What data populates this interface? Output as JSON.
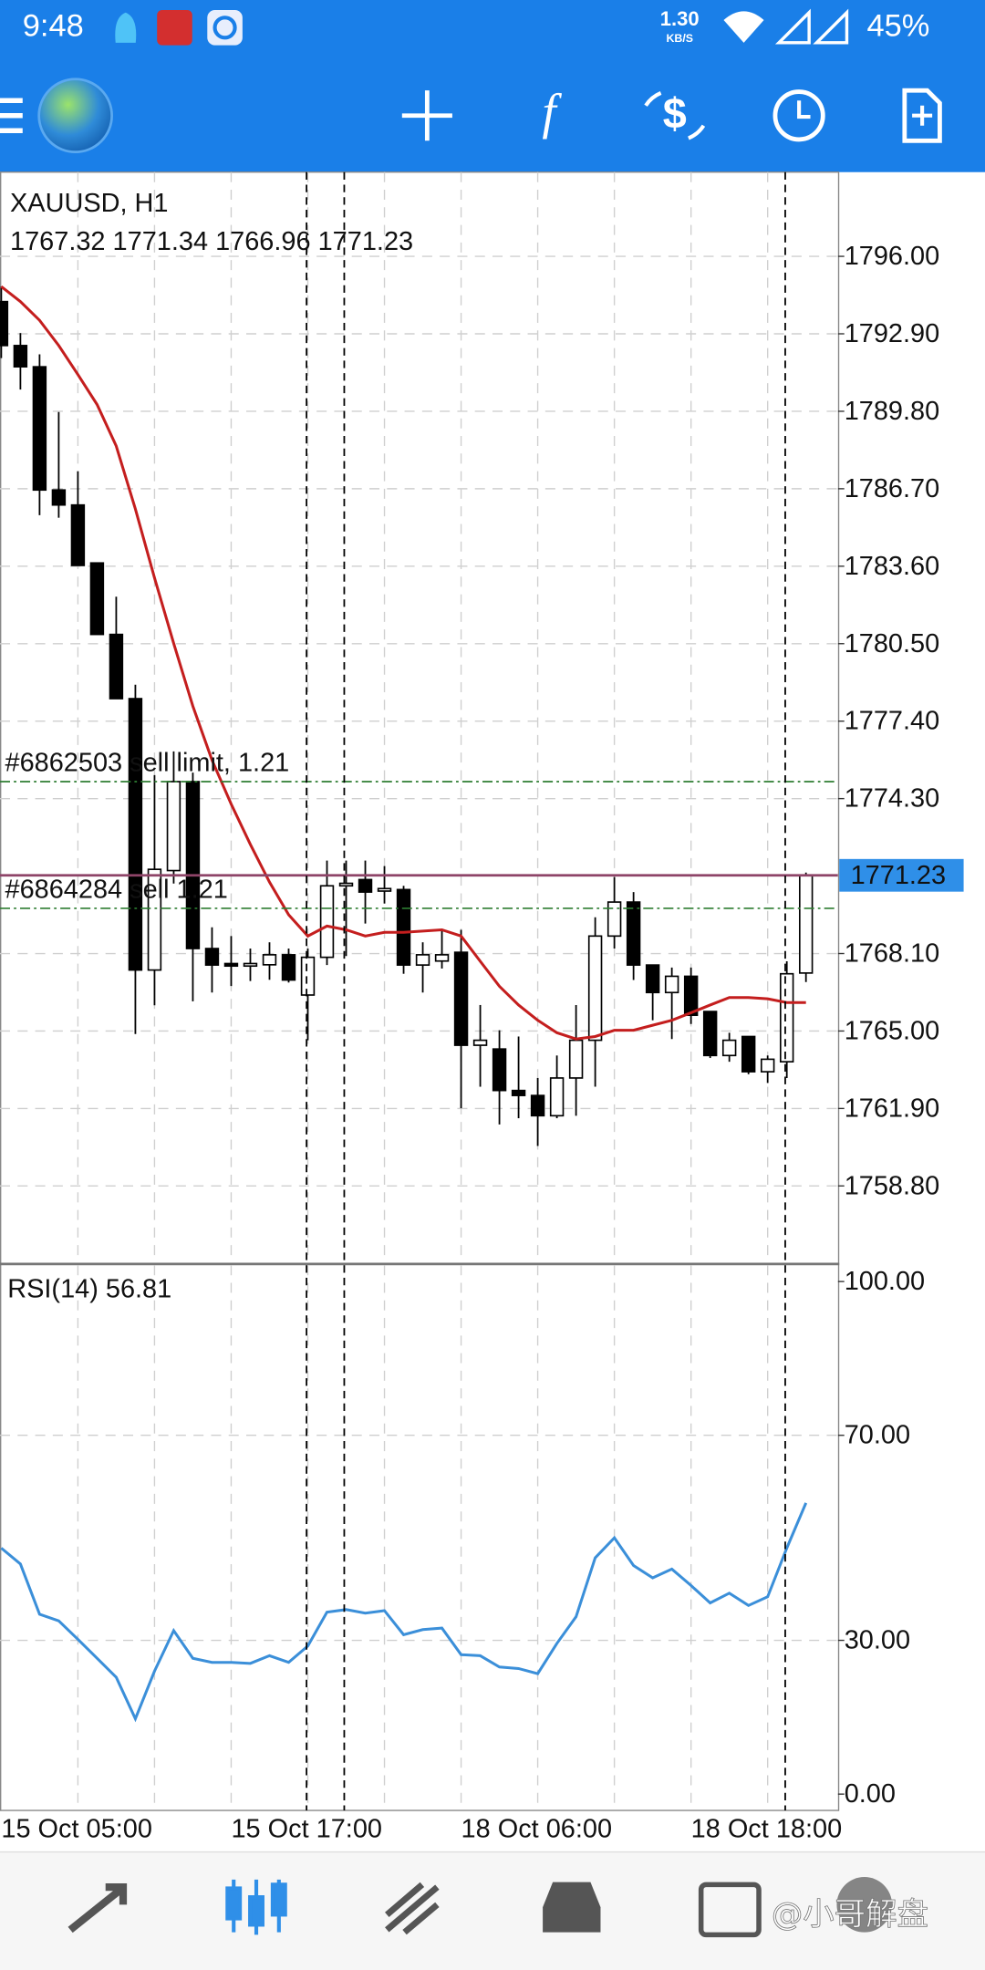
{
  "status_bar": {
    "time": "9:48",
    "speed": "1.30",
    "speed_unit": "KB/S",
    "battery": "45%"
  },
  "chart_data": [
    {
      "type": "candlestick",
      "title": "XAUUSD, H1",
      "categories": [
        "15 Oct 05:00",
        null,
        null,
        null,
        null,
        null,
        null,
        null,
        null,
        null,
        null,
        null,
        "15 Oct 17:00",
        null,
        null,
        null,
        null,
        null,
        null,
        null,
        null,
        null,
        null,
        null,
        "18 Oct 06:00",
        null,
        null,
        null,
        null,
        null,
        null,
        null,
        null,
        null,
        null,
        null,
        "18 Oct 18:00",
        null,
        null,
        null,
        null,
        null,
        null
      ],
      "open": [
        1794.19,
        1792.43,
        1791.58,
        1786.65,
        1786.05,
        1783.73,
        1780.87,
        1778.3,
        1767.44,
        1771.42,
        1774.98,
        1768.3,
        1767.7,
        1767.6,
        1767.65,
        1768.05,
        1766.44,
        1767.95,
        1770.81,
        1771.06,
        1770.6,
        1770.66,
        1767.64,
        1767.8,
        1768.15,
        1764.43,
        1764.28,
        1762.62,
        1762.42,
        1761.61,
        1763.12,
        1764.63,
        1768.8,
        1770.16,
        1767.64,
        1766.54,
        1767.19,
        1765.78,
        1764.02,
        1764.78,
        1763.37,
        1763.77,
        1767.32
      ],
      "high": [
        1794.79,
        1792.93,
        1792.08,
        1789.77,
        1787.4,
        1783.73,
        1782.38,
        1778.86,
        1775.24,
        1776.19,
        1775.34,
        1769.15,
        1768.8,
        1768.3,
        1768.55,
        1768.3,
        1768.3,
        1771.82,
        1771.82,
        1771.82,
        1771.6,
        1770.81,
        1768.55,
        1769.05,
        1769.05,
        1766.04,
        1765.03,
        1764.78,
        1763.12,
        1764.02,
        1766.04,
        1769.55,
        1771.16,
        1770.56,
        1767.64,
        1767.54,
        1767.54,
        1765.78,
        1764.93,
        1764.78,
        1764.02,
        1767.79,
        1771.34
      ],
      "low": [
        1791.93,
        1790.67,
        1785.64,
        1785.54,
        1783.63,
        1780.87,
        1778.3,
        1764.88,
        1766.03,
        1770.9,
        1766.19,
        1766.54,
        1766.8,
        1767.0,
        1767.05,
        1766.94,
        1764.63,
        1767.64,
        1768.0,
        1769.3,
        1770.1,
        1767.29,
        1766.54,
        1767.5,
        1761.91,
        1762.77,
        1761.26,
        1761.51,
        1760.4,
        1761.51,
        1761.61,
        1762.77,
        1768.3,
        1767.04,
        1765.43,
        1764.68,
        1765.28,
        1763.92,
        1763.77,
        1763.27,
        1762.92,
        1763.12,
        1766.96
      ],
      "close": [
        1792.43,
        1791.58,
        1786.65,
        1786.05,
        1783.63,
        1780.87,
        1778.3,
        1767.44,
        1771.47,
        1774.98,
        1768.3,
        1767.64,
        1767.6,
        1767.7,
        1768.05,
        1767.04,
        1767.95,
        1770.81,
        1770.91,
        1770.56,
        1770.7,
        1767.64,
        1768.05,
        1768.05,
        1764.43,
        1764.63,
        1762.62,
        1762.42,
        1761.61,
        1763.12,
        1764.63,
        1768.8,
        1770.16,
        1767.64,
        1766.54,
        1767.19,
        1765.63,
        1764.02,
        1764.63,
        1763.37,
        1763.87,
        1767.29,
        1771.23
      ],
      "up_color": "#ffffff",
      "down_color": "#000000",
      "ma": {
        "color": "#c41e1e",
        "values": [
          1794.79,
          1794.19,
          1793.44,
          1792.43,
          1791.27,
          1790.07,
          1788.41,
          1785.89,
          1783.13,
          1780.51,
          1778.0,
          1775.84,
          1774.08,
          1772.47,
          1770.96,
          1769.65,
          1768.8,
          1769.2,
          1769.05,
          1768.8,
          1768.95,
          1768.95,
          1769.0,
          1769.05,
          1768.8,
          1767.79,
          1766.79,
          1766.04,
          1765.43,
          1764.93,
          1764.68,
          1764.78,
          1765.03,
          1765.03,
          1765.23,
          1765.43,
          1765.73,
          1766.04,
          1766.34,
          1766.34,
          1766.29,
          1766.14,
          1766.14
        ]
      },
      "levels": [
        {
          "label": "#6862503 sell limit, 1.21",
          "value": 1774.98,
          "color": "#2e7d32"
        },
        {
          "label": "#6864284 sell 1.21",
          "value": 1769.91,
          "color": "#2e7d32"
        }
      ],
      "bid_color": "#8e4468",
      "price_label_color": "#2f8fe8",
      "ylim": [
        1755.73,
        1799.37
      ],
      "yticks": [
        {
          "value": 1796.0,
          "label": "1796.00"
        },
        {
          "value": 1792.9,
          "label": "1792.90"
        },
        {
          "value": 1789.8,
          "label": "1789.80"
        },
        {
          "value": 1786.7,
          "label": "1786.70"
        },
        {
          "value": 1783.6,
          "label": "1783.60"
        },
        {
          "value": 1780.5,
          "label": "1780.50"
        },
        {
          "value": 1777.4,
          "label": "1777.40"
        },
        {
          "value": 1774.3,
          "label": "1774.30"
        },
        {
          "value": 1768.1,
          "label": "1768.10"
        },
        {
          "value": 1765.0,
          "label": "1765.00"
        },
        {
          "value": 1761.9,
          "label": "1761.90"
        },
        {
          "value": 1758.8,
          "label": "1758.80"
        }
      ],
      "grid": true
    },
    {
      "type": "line",
      "title": "RSI(14)",
      "values": [
        48.0,
        44.9,
        35.1,
        33.8,
        30.2,
        26.5,
        22.8,
        14.7,
        24.0,
        31.9,
        26.5,
        25.7,
        25.7,
        25.5,
        27.0,
        25.7,
        28.9,
        35.5,
        36.0,
        35.3,
        35.8,
        31.1,
        32.1,
        32.4,
        27.2,
        27.0,
        24.8,
        24.5,
        23.5,
        29.4,
        34.6,
        46.1,
        50.0,
        44.6,
        42.2,
        43.9,
        40.7,
        37.3,
        39.2,
        36.8,
        38.5,
        48.0,
        56.81
      ],
      "color": "#3b8fd9",
      "ylim": [
        -2.94,
        103.19
      ],
      "yticks": [
        {
          "value": 100,
          "label": "100.00"
        },
        {
          "value": 70,
          "label": "70.00"
        },
        {
          "value": 30,
          "label": "30.00"
        },
        {
          "value": 0,
          "label": "0.00"
        }
      ],
      "grid": true
    }
  ],
  "watermark": "@小哥解盘"
}
